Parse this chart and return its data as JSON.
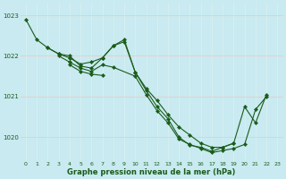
{
  "bg_color": "#c8eaf0",
  "grid_color_h": "#f0c8c8",
  "grid_color_v": "#d8f0f0",
  "line_color": "#1a5c1a",
  "marker_color": "#1a5c1a",
  "xlabel": "Graphe pression niveau de la mer (hPa)",
  "xlabel_color": "#1a5c1a",
  "tick_color": "#1a5c1a",
  "ylim": [
    1019.4,
    1023.3
  ],
  "yticks": [
    1020,
    1021,
    1022,
    1023
  ],
  "xticks": [
    0,
    1,
    2,
    3,
    4,
    5,
    6,
    7,
    8,
    9,
    10,
    11,
    12,
    13,
    14,
    15,
    16,
    17,
    18,
    19,
    20,
    21,
    22,
    23
  ],
  "series": [
    [
      1022.9,
      1022.4,
      1022.2,
      1022.05,
      1021.95,
      1021.8,
      1021.85,
      1021.95,
      1022.25,
      1022.35,
      1021.6,
      1021.2,
      1020.9,
      1020.55,
      1020.25,
      1020.05,
      1019.85,
      1019.75,
      1019.75,
      1019.85,
      1020.75,
      1020.35,
      1021.05,
      null
    ],
    [
      null,
      null,
      1022.2,
      1022.05,
      1022.0,
      1021.75,
      1021.7,
      1021.95,
      1022.25,
      1022.4,
      1021.6,
      1021.15,
      1020.75,
      1020.45,
      1020.0,
      1019.8,
      1019.75,
      1019.65,
      1019.75,
      1019.85,
      null,
      null,
      null,
      null
    ],
    [
      null,
      null,
      null,
      1022.0,
      1021.85,
      1021.7,
      1021.62,
      1021.78,
      1021.72,
      null,
      1021.5,
      1021.05,
      1020.65,
      1020.35,
      1019.95,
      1019.82,
      1019.72,
      1019.62,
      1019.67,
      1019.72,
      1019.82,
      1020.68,
      1021.0,
      null
    ],
    [
      null,
      null,
      null,
      null,
      1021.78,
      1021.62,
      1021.55,
      1021.52,
      null,
      null,
      null,
      null,
      null,
      null,
      null,
      null,
      null,
      null,
      null,
      null,
      null,
      null,
      null,
      null
    ]
  ]
}
